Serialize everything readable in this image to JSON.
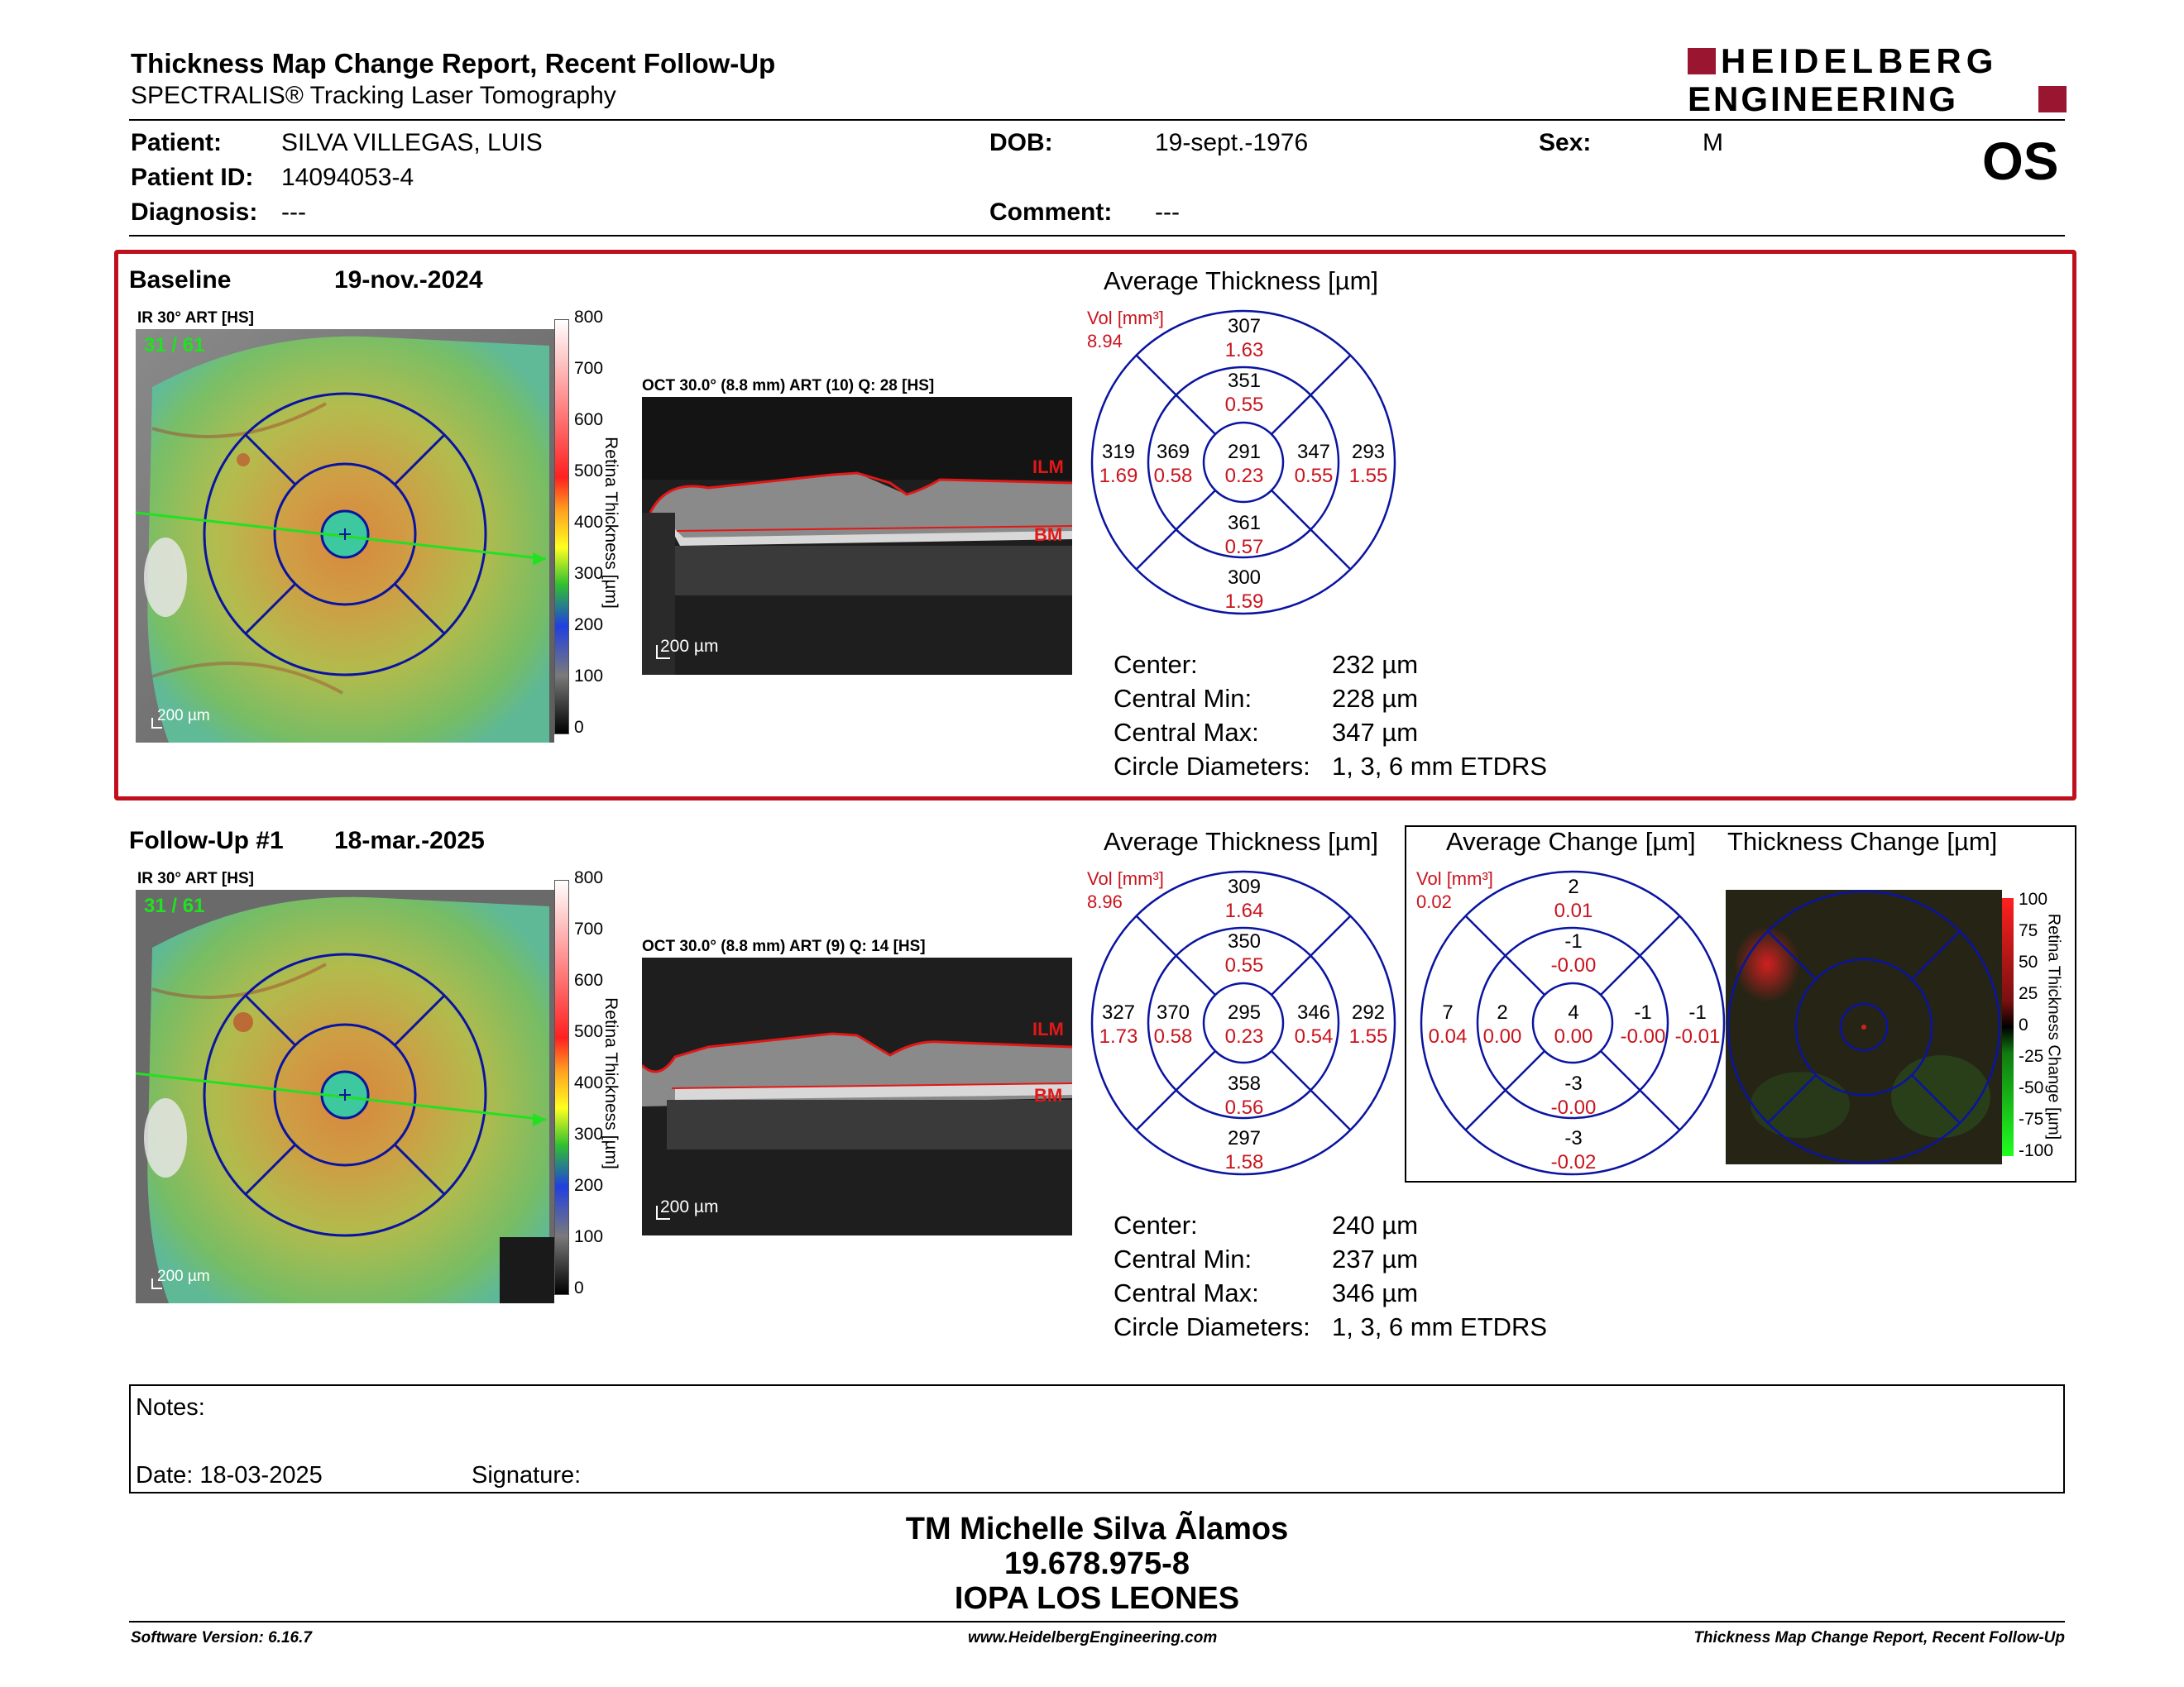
{
  "header": {
    "title": "Thickness Map Change Report, Recent Follow-Up",
    "subtitle": "SPECTRALIS® Tracking Laser Tomography",
    "logo_line1": "HEIDELBERG",
    "logo_line2": "ENGINEERING",
    "eye": "OS"
  },
  "patient": {
    "patient_label": "Patient:",
    "patient_value": "SILVA VILLEGAS, LUIS",
    "id_label": "Patient ID:",
    "id_value": "14094053-4",
    "diagnosis_label": "Diagnosis:",
    "diagnosis_value": "---",
    "dob_label": "DOB:",
    "dob_value": "19-sept.-1976",
    "comment_label": "Comment:",
    "comment_value": "---",
    "sex_label": "Sex:",
    "sex_value": "M"
  },
  "baseline": {
    "label": "Baseline",
    "date": "19-nov.-2024",
    "ir_label": "IR 30° ART [HS]",
    "ir_overlay": "31 / 61",
    "ir_scale": "200 µm",
    "oct_label": "OCT 30.0° (8.8 mm) ART (10) Q: 28 [HS]",
    "oct_scale": "200 µm",
    "ilm": "ILM",
    "bm": "BM",
    "colorbar_ticks": [
      "800",
      "700",
      "600",
      "500",
      "400",
      "300",
      "200",
      "100",
      "0"
    ],
    "colorbar_title": "Retina Thickness [µm]",
    "avg_title": "Average Thickness [µm]",
    "vol_label": "Vol [mm³]",
    "vol_value": "8.94",
    "grid": {
      "center": [
        "291",
        "0.23"
      ],
      "inner_sup": [
        "351",
        "0.55"
      ],
      "inner_inf": [
        "361",
        "0.57"
      ],
      "inner_temp": [
        "369",
        "0.58"
      ],
      "inner_nas": [
        "347",
        "0.55"
      ],
      "outer_sup": [
        "307",
        "1.63"
      ],
      "outer_inf": [
        "300",
        "1.59"
      ],
      "outer_temp": [
        "319",
        "1.69"
      ],
      "outer_nas": [
        "293",
        "1.55"
      ]
    },
    "stats": [
      {
        "label": "Center:",
        "value": "232 µm"
      },
      {
        "label": "Central Min:",
        "value": "228 µm"
      },
      {
        "label": "Central Max:",
        "value": "347 µm"
      },
      {
        "label": "Circle Diameters:",
        "value": "1, 3, 6 mm ETDRS"
      }
    ]
  },
  "followup": {
    "label": "Follow-Up #1",
    "date": "18-mar.-2025",
    "ir_label": "IR 30° ART [HS]",
    "ir_overlay": "31 / 61",
    "ir_scale": "200 µm",
    "oct_label": "OCT 30.0° (8.8 mm) ART (9) Q: 14 [HS]",
    "oct_scale": "200 µm",
    "ilm": "ILM",
    "bm": "BM",
    "colorbar_ticks": [
      "800",
      "700",
      "600",
      "500",
      "400",
      "300",
      "200",
      "100",
      "0"
    ],
    "colorbar_title": "Retina Thickness [µm]",
    "avg_title": "Average Thickness [µm]",
    "vol_label": "Vol [mm³]",
    "vol_value": "8.96",
    "grid": {
      "center": [
        "295",
        "0.23"
      ],
      "inner_sup": [
        "350",
        "0.55"
      ],
      "inner_inf": [
        "358",
        "0.56"
      ],
      "inner_temp": [
        "370",
        "0.58"
      ],
      "inner_nas": [
        "346",
        "0.54"
      ],
      "outer_sup": [
        "309",
        "1.64"
      ],
      "outer_inf": [
        "297",
        "1.58"
      ],
      "outer_temp": [
        "327",
        "1.73"
      ],
      "outer_nas": [
        "292",
        "1.55"
      ]
    },
    "stats": [
      {
        "label": "Center:",
        "value": "240 µm"
      },
      {
        "label": "Central Min:",
        "value": "237 µm"
      },
      {
        "label": "Central Max:",
        "value": "346 µm"
      },
      {
        "label": "Circle Diameters:",
        "value": "1, 3, 6 mm ETDRS"
      }
    ]
  },
  "change": {
    "avg_title": "Average Change [µm]",
    "map_title": "Thickness Change [µm]",
    "vol_label": "Vol [mm³]",
    "vol_value": "0.02",
    "grid": {
      "center": [
        "4",
        "0.00"
      ],
      "inner_sup": [
        "-1",
        "-0.00"
      ],
      "inner_inf": [
        "-3",
        "-0.00"
      ],
      "inner_temp": [
        "2",
        "0.00"
      ],
      "inner_nas": [
        "-1",
        "-0.00"
      ],
      "outer_sup": [
        "2",
        "0.01"
      ],
      "outer_inf": [
        "-3",
        "-0.02"
      ],
      "outer_temp": [
        "7",
        "0.04"
      ],
      "outer_nas": [
        "-1",
        "-0.01"
      ]
    },
    "colorbar_ticks": [
      "100",
      "75",
      "50",
      "25",
      "0",
      "-25",
      "-50",
      "-75",
      "-100"
    ],
    "colorbar_title": "Retina Thickness Change [µm]"
  },
  "notes": {
    "notes_label": "Notes:",
    "date_label": "Date: 18-03-2025",
    "signature_label": "Signature:"
  },
  "signature_block": {
    "line1": "TM Michelle Silva Ãlamos",
    "line2": "19.678.975-8",
    "line3": "IOPA LOS LEONES"
  },
  "footer": {
    "left": "Software Version: 6.16.7",
    "center": "www.HeidelbergEngineering.com",
    "right": "Thickness Map Change Report, Recent Follow-Up"
  },
  "colors": {
    "red_frame": "#c0101e",
    "grid_blue": "#0a14a0",
    "volume_red": "#c8141e",
    "logo_red": "#9a1630"
  }
}
